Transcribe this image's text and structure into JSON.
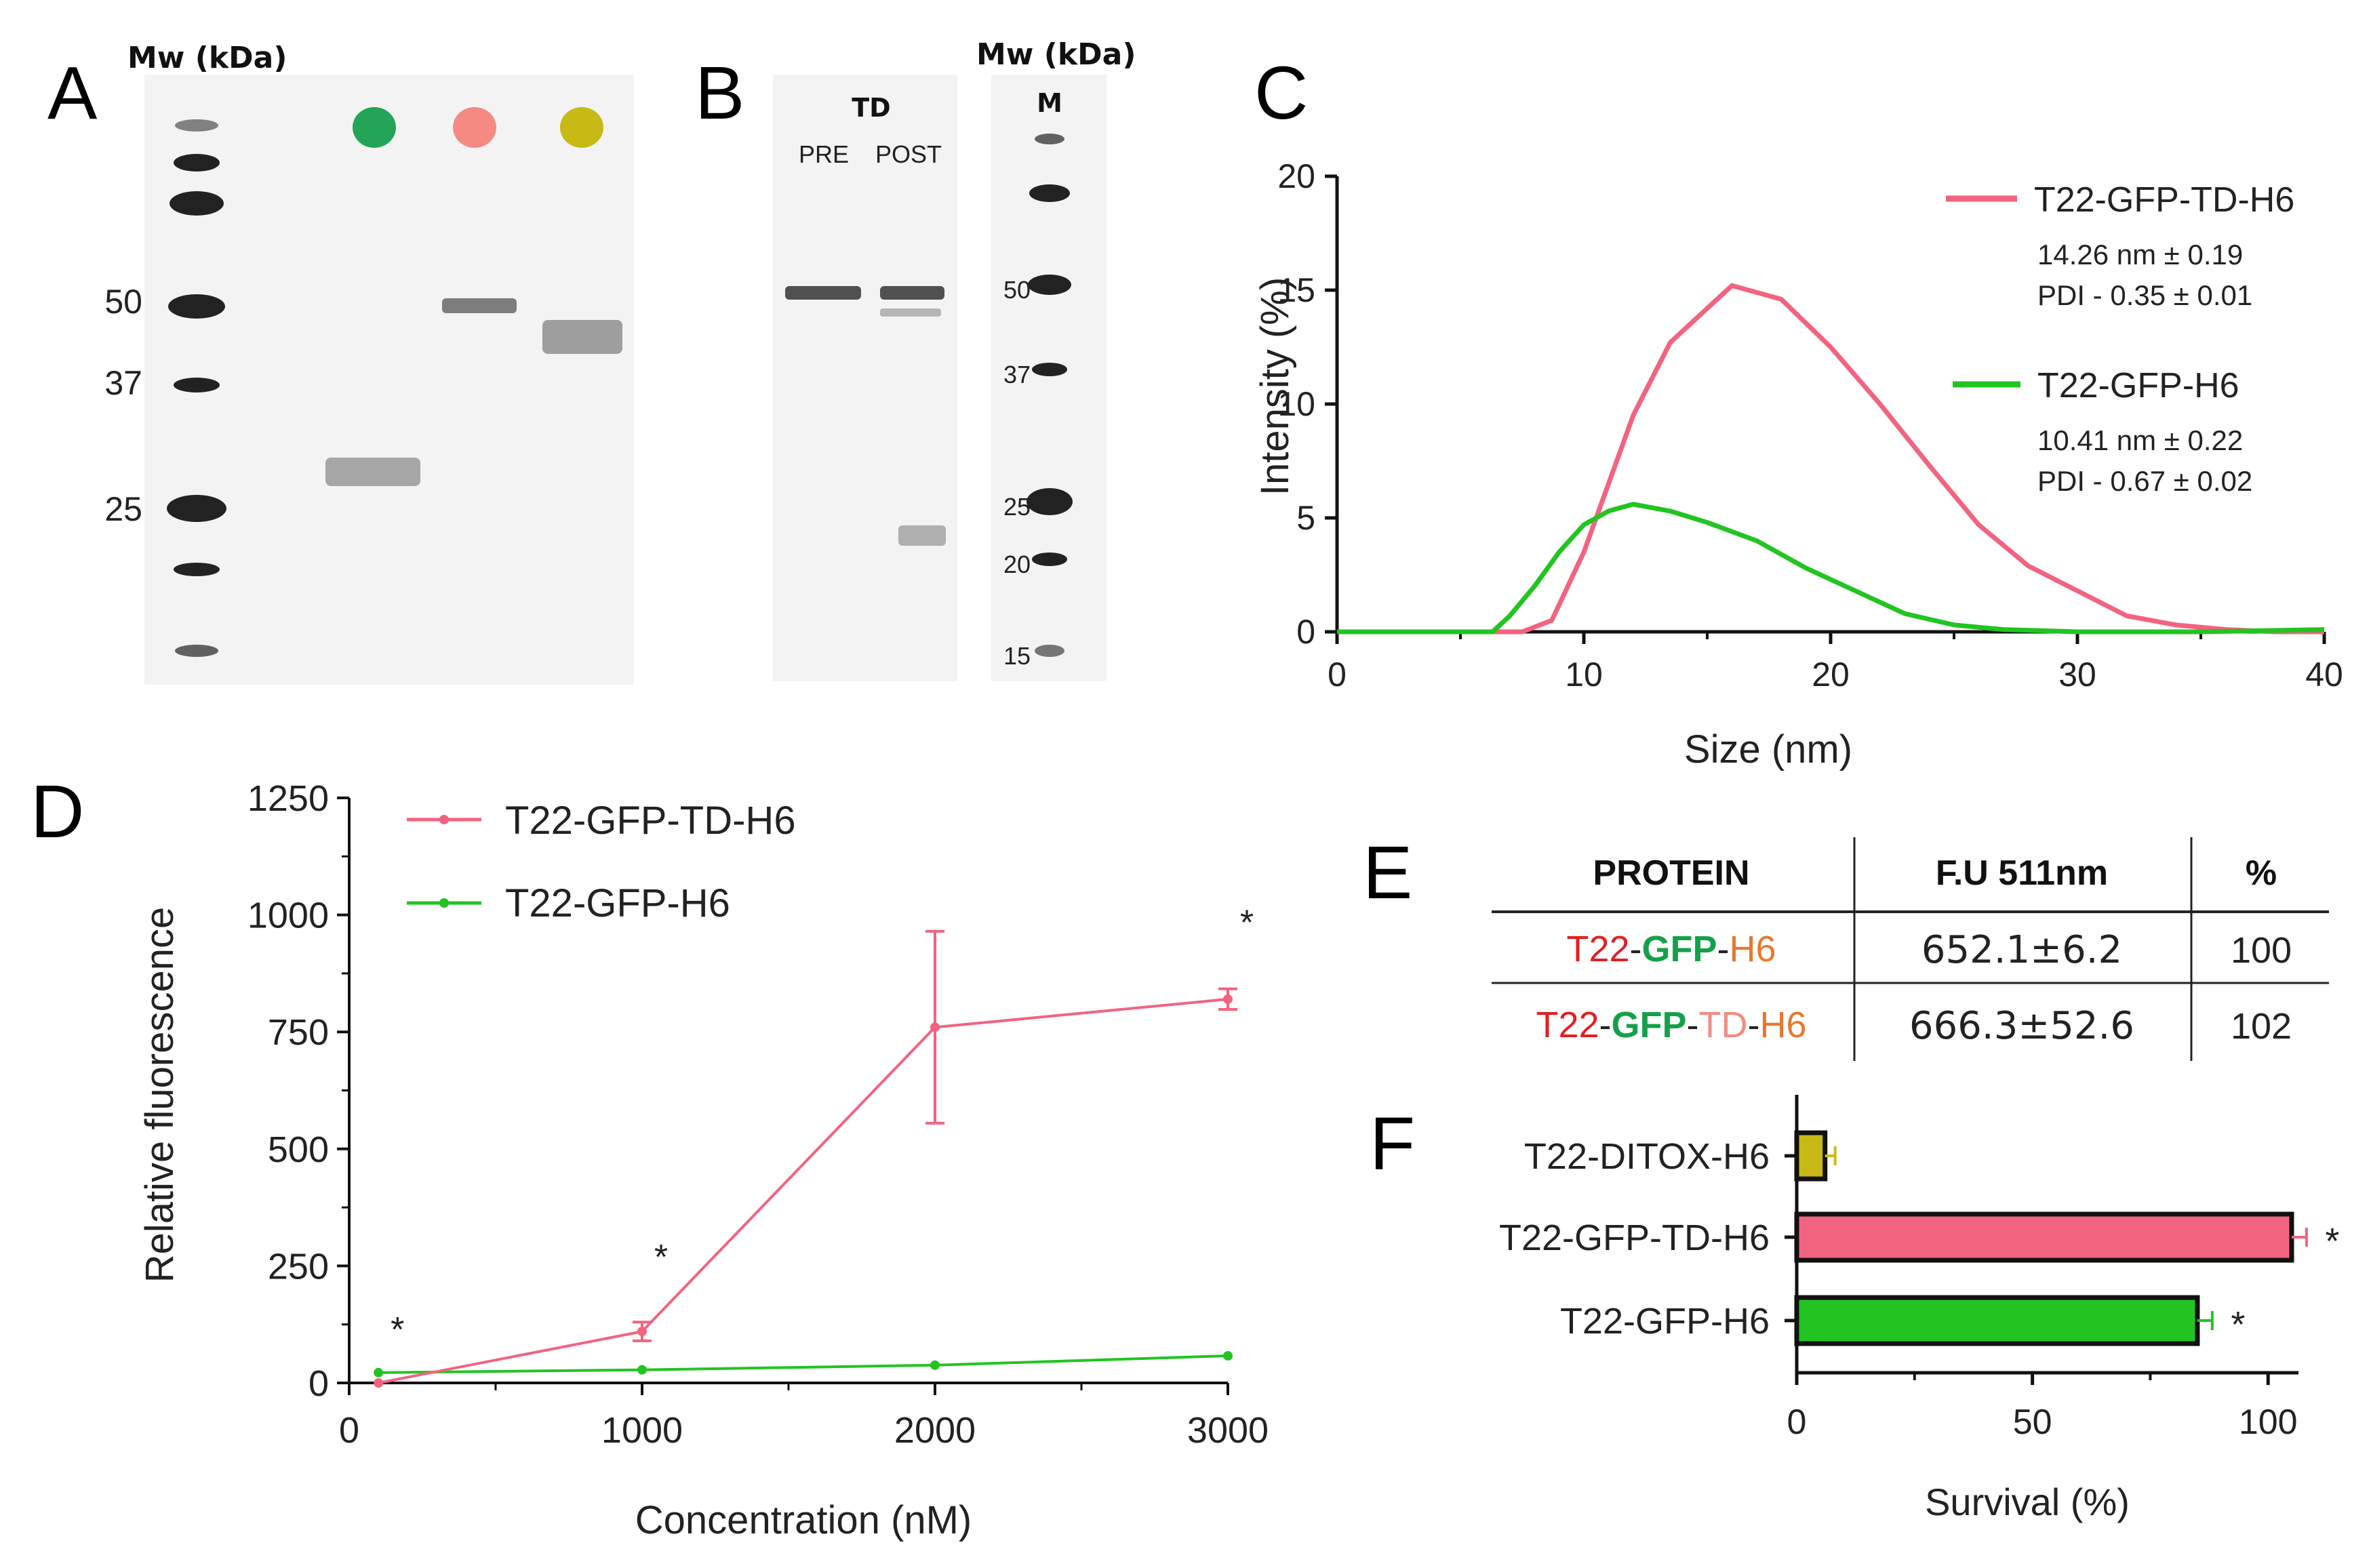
{
  "panel_letters": {
    "a": "A",
    "b": "B",
    "c": "C",
    "d": "D",
    "e": "E",
    "f": "F"
  },
  "gels": {
    "mw_label_a": "Mw (kDa)",
    "mw_label_b": "Mw (kDa)",
    "a_markers": [
      "50",
      "37",
      "25"
    ],
    "b_markers": [
      "50",
      "37",
      "25",
      "20",
      "15"
    ],
    "b_title": "TD",
    "b_lanes": [
      "PRE",
      "POST"
    ],
    "b_marker_lane": "M",
    "dot_colors": [
      "#22a556",
      "#f58a82",
      "#c8b914"
    ]
  },
  "chart_data": [
    {
      "panel": "C",
      "type": "line",
      "xlabel": "Size (nm)",
      "ylabel": "Intensity (%)",
      "xlim": [
        0,
        40
      ],
      "ylim": [
        0,
        20
      ],
      "xticks": [
        0,
        10,
        20,
        30,
        40
      ],
      "yticks": [
        0,
        5,
        10,
        15,
        20
      ],
      "series": [
        {
          "name": "T22-GFP-TD-H6",
          "color": "#f2637f",
          "stat1": "14.26 nm ± 0.19",
          "stat2": "PDI - 0.35 ± 0.01",
          "x": [
            0,
            2,
            4,
            6,
            7.5,
            8.7,
            10,
            12,
            13.5,
            16,
            18,
            20,
            22,
            24,
            26,
            28,
            30,
            32,
            34,
            36,
            38,
            40
          ],
          "y": [
            0,
            0,
            0,
            0,
            0,
            0.5,
            3.5,
            9.5,
            12.7,
            15.2,
            14.6,
            12.5,
            10.0,
            7.3,
            4.7,
            2.9,
            1.8,
            0.7,
            0.3,
            0.1,
            0,
            0
          ]
        },
        {
          "name": "T22-GFP-H6",
          "color": "#22c422",
          "stat1": "10.41 nm ± 0.22",
          "stat2": "PDI - 0.67 ± 0.02",
          "x": [
            0,
            4,
            6.3,
            7,
            8,
            9,
            10,
            11,
            12,
            13.5,
            15,
            17,
            19,
            21,
            23,
            25,
            27,
            30,
            35,
            40
          ],
          "y": [
            0,
            0,
            0,
            0.7,
            2.0,
            3.5,
            4.7,
            5.3,
            5.6,
            5.3,
            4.8,
            4.0,
            2.8,
            1.8,
            0.8,
            0.3,
            0.1,
            0,
            0,
            0.1
          ]
        }
      ]
    },
    {
      "panel": "D",
      "type": "line",
      "xlabel": "Concentration (nM)",
      "ylabel": "Relative fluorescence",
      "xlim": [
        0,
        3000
      ],
      "ylim": [
        0,
        1250
      ],
      "xticks": [
        0,
        1000,
        2000,
        3000
      ],
      "yticks": [
        0,
        250,
        500,
        750,
        1000,
        1250
      ],
      "series": [
        {
          "name": "T22-GFP-TD-H6",
          "color": "#f2637f",
          "x": [
            100,
            1000,
            2000,
            3000
          ],
          "y": [
            0,
            110,
            760,
            820
          ],
          "err": [
            0,
            20,
            205,
            22
          ]
        },
        {
          "name": "T22-GFP-H6",
          "color": "#22c422",
          "x": [
            100,
            1000,
            2000,
            3000
          ],
          "y": [
            22,
            28,
            38,
            58
          ],
          "err": [
            0,
            0,
            0,
            0
          ]
        }
      ],
      "significance": [
        {
          "x": 100,
          "y": 110,
          "text": "*"
        },
        {
          "x": 1000,
          "y": 265,
          "text": "*"
        },
        {
          "x": 3000,
          "y": 980,
          "text": "*"
        }
      ]
    },
    {
      "panel": "E",
      "type": "table",
      "headers": [
        "PROTEIN",
        "F.U 511nm",
        "%"
      ],
      "rows": [
        {
          "segments": [
            {
              "text": "T22",
              "color": "#e31e24"
            },
            {
              "text": "-",
              "color": "#222222"
            },
            {
              "text": "GFP",
              "color": "#14a04a",
              "bold": true
            },
            {
              "text": "-",
              "color": "#222222"
            },
            {
              "text": "H6",
              "color": "#e8772e"
            }
          ],
          "fu": "652.1±6.2",
          "pct": "100"
        },
        {
          "segments": [
            {
              "text": "T22",
              "color": "#e31e24"
            },
            {
              "text": "-",
              "color": "#222222"
            },
            {
              "text": "GFP",
              "color": "#14a04a",
              "bold": true
            },
            {
              "text": "-",
              "color": "#222222"
            },
            {
              "text": "TD",
              "color": "#f58a82"
            },
            {
              "text": "-",
              "color": "#222222"
            },
            {
              "text": "H6",
              "color": "#e8772e"
            }
          ],
          "fu": "666.3±52.6",
          "pct": "102"
        }
      ]
    },
    {
      "panel": "F",
      "type": "bar",
      "orientation": "horizontal",
      "xlabel": "Survival (%)",
      "xlim": [
        0,
        105
      ],
      "xticks": [
        0,
        50,
        100
      ],
      "categories": [
        "T22-DITOX-H6",
        "T22-GFP-TD-H6",
        "T22-GFP-H6"
      ],
      "values": [
        6,
        105,
        85
      ],
      "errors": [
        1,
        2,
        2
      ],
      "colors": [
        "#c8b914",
        "#f2637f",
        "#22c422"
      ],
      "significance": [
        "",
        "*",
        "*"
      ]
    }
  ]
}
